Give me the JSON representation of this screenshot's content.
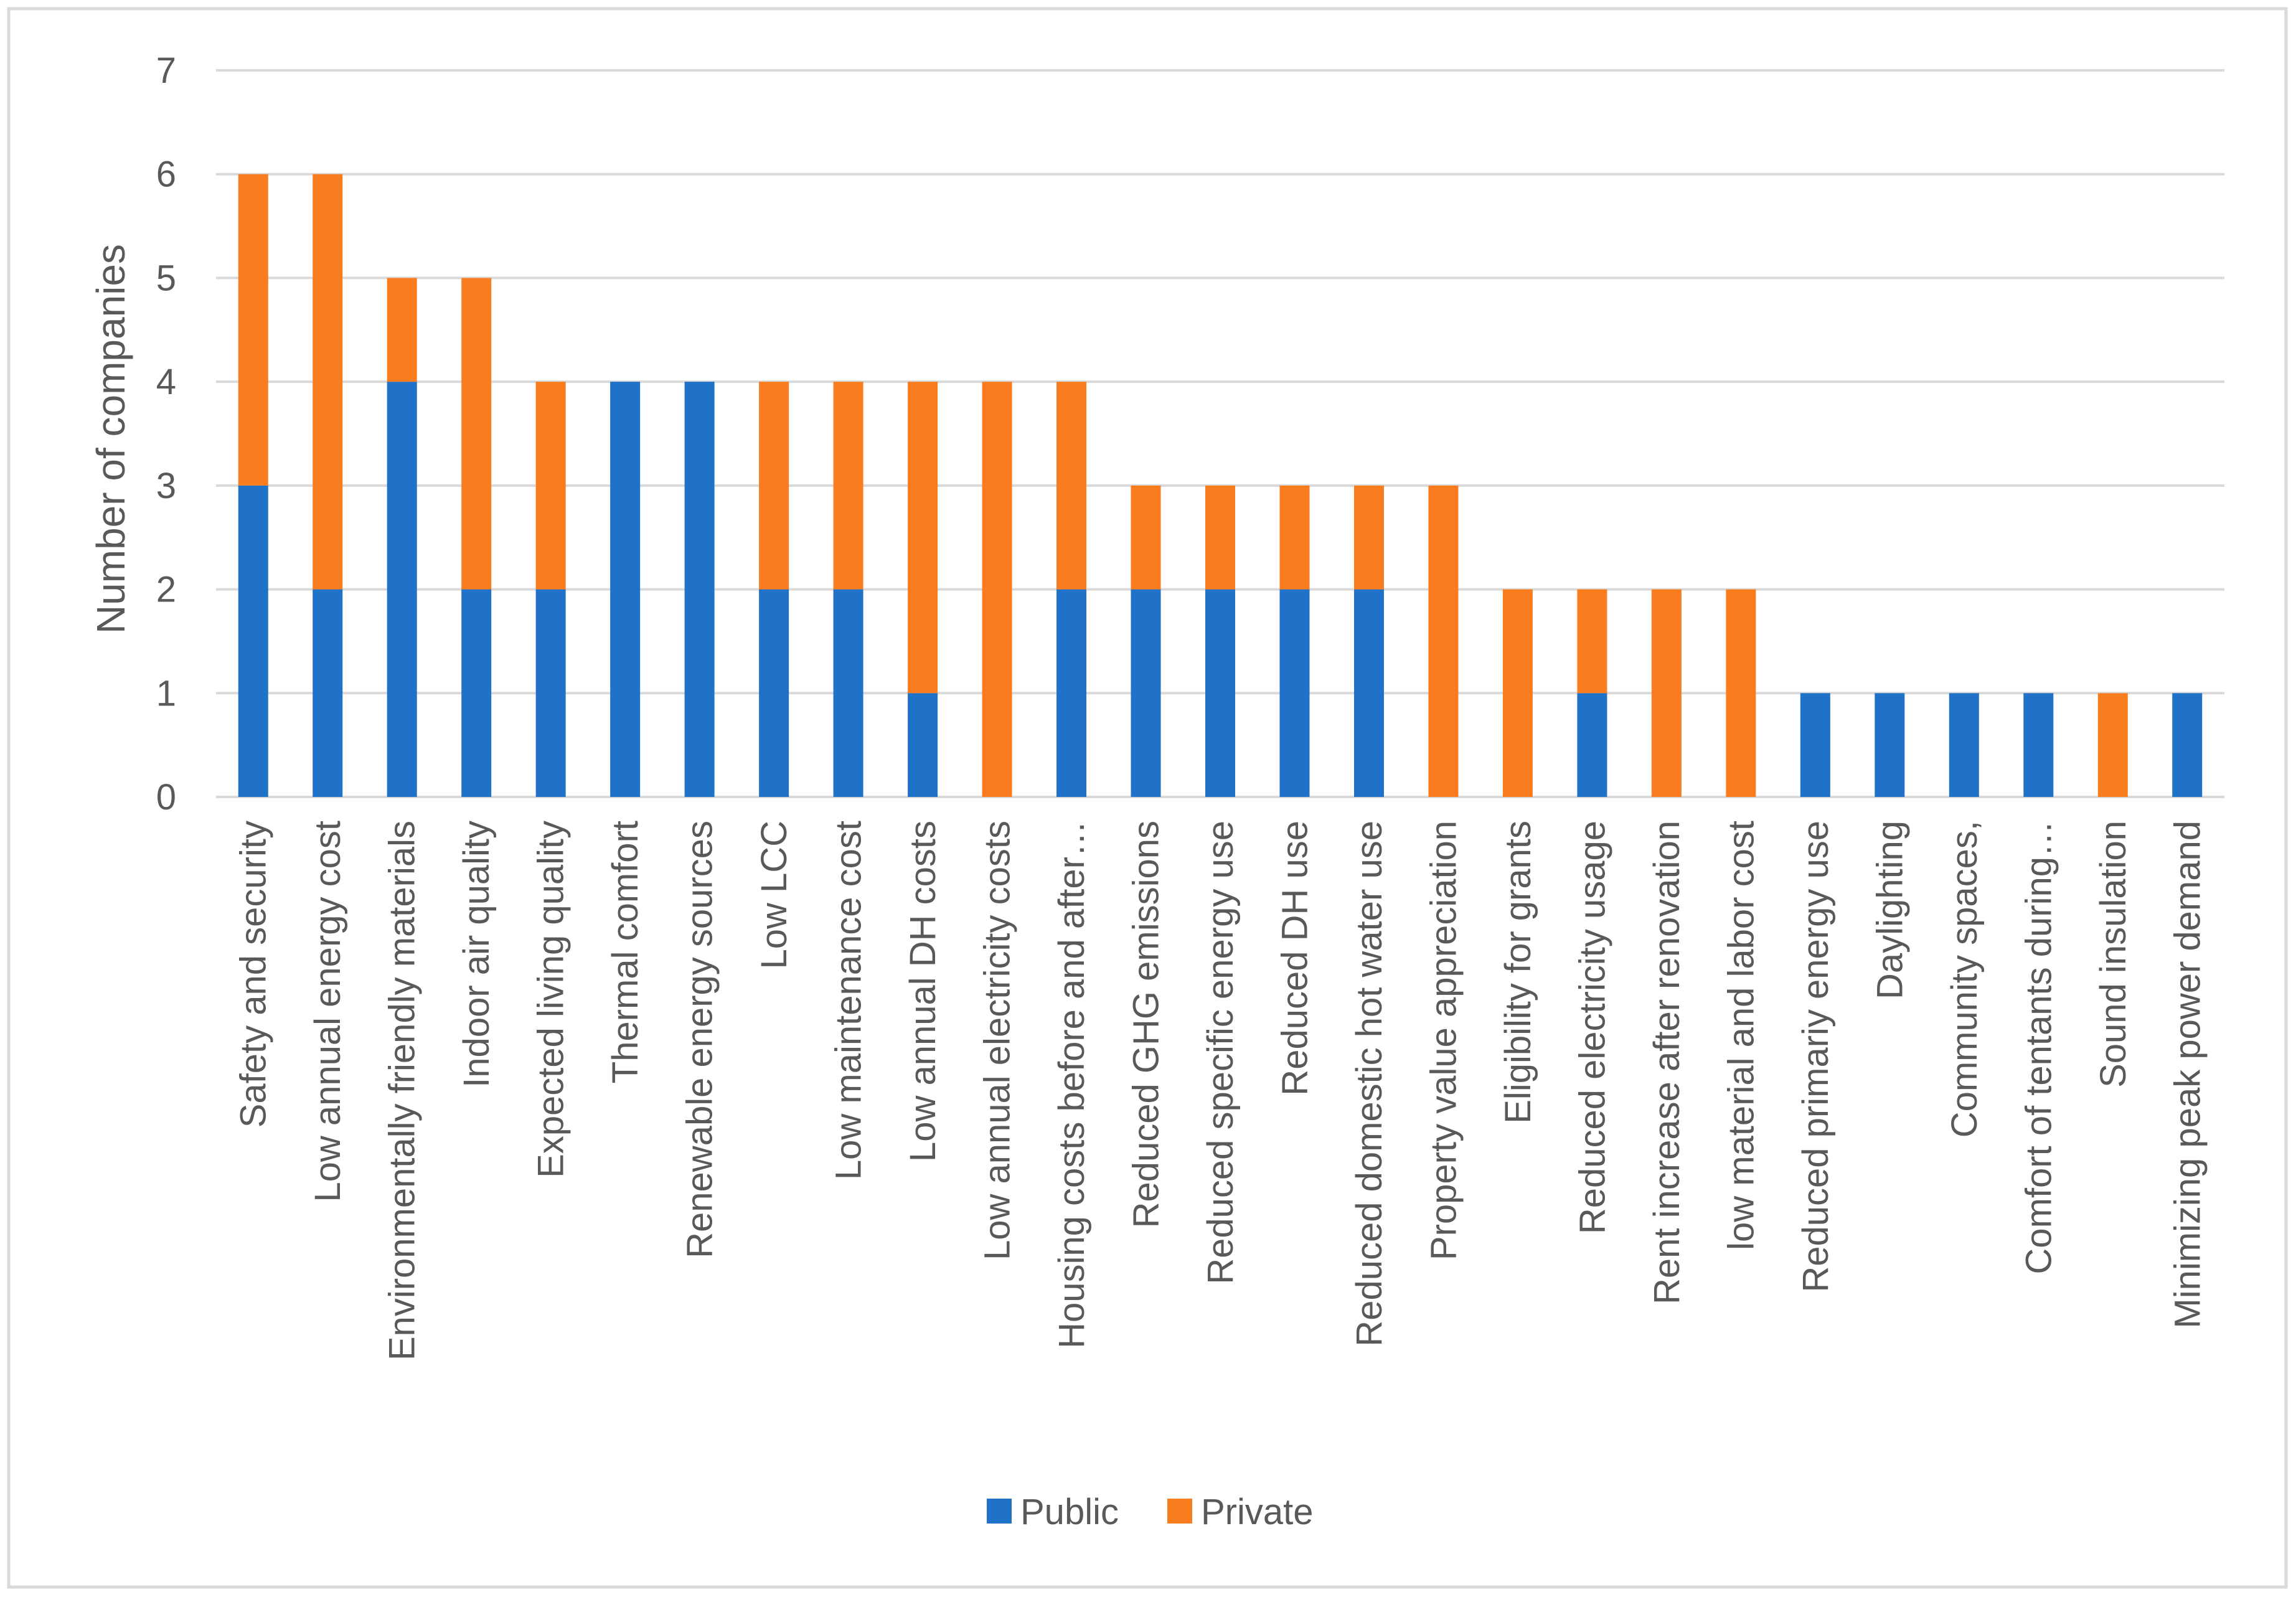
{
  "chart_data": {
    "type": "bar",
    "stacked": true,
    "title": "",
    "xlabel": "",
    "ylabel": "Number of companies",
    "ylim": [
      0,
      7
    ],
    "yticks": [
      0,
      1,
      2,
      3,
      4,
      5,
      6,
      7
    ],
    "grid": true,
    "legend_position": "bottom",
    "categories": [
      "Safety and security",
      "Low annual energy cost",
      "Environmentally friendly materials",
      "Indoor air quality",
      "Expected living quality",
      "Thermal comfort",
      "Renewable energy sources",
      "Low LCC",
      "Low maintenance cost",
      "Low annual DH costs",
      "Low  annual electricity costs",
      "Housing costs before and after…",
      "Reduced GHG emissions",
      "Reduced specific energy use",
      "Reduced DH use",
      "Reduced domestic hot water use",
      "Property value appreciation",
      "Eligibility for grants",
      "Reduced electricity usage",
      "Rent increase after renovation",
      "low material and labor cost",
      "Reduced primariy energy use",
      "Daylighting",
      "Community spaces,",
      "Comfort of tentants during…",
      "Sound insulation",
      "Minimizing peak power demand"
    ],
    "series": [
      {
        "name": "Public",
        "color": "#1f72c8",
        "values": [
          3,
          2,
          4,
          2,
          2,
          4,
          4,
          2,
          2,
          1,
          0,
          2,
          2,
          2,
          2,
          2,
          0,
          0,
          1,
          0,
          0,
          1,
          1,
          1,
          1,
          0,
          1
        ]
      },
      {
        "name": "Private",
        "color": "#f97d1e",
        "values": [
          3,
          4,
          1,
          3,
          2,
          0,
          0,
          2,
          2,
          3,
          4,
          2,
          1,
          1,
          1,
          1,
          3,
          2,
          1,
          2,
          2,
          0,
          0,
          0,
          0,
          1,
          0
        ]
      }
    ]
  },
  "colors": {
    "grid": "#d9d9d9",
    "text": "#595959",
    "frame": "#d9d9d9"
  }
}
